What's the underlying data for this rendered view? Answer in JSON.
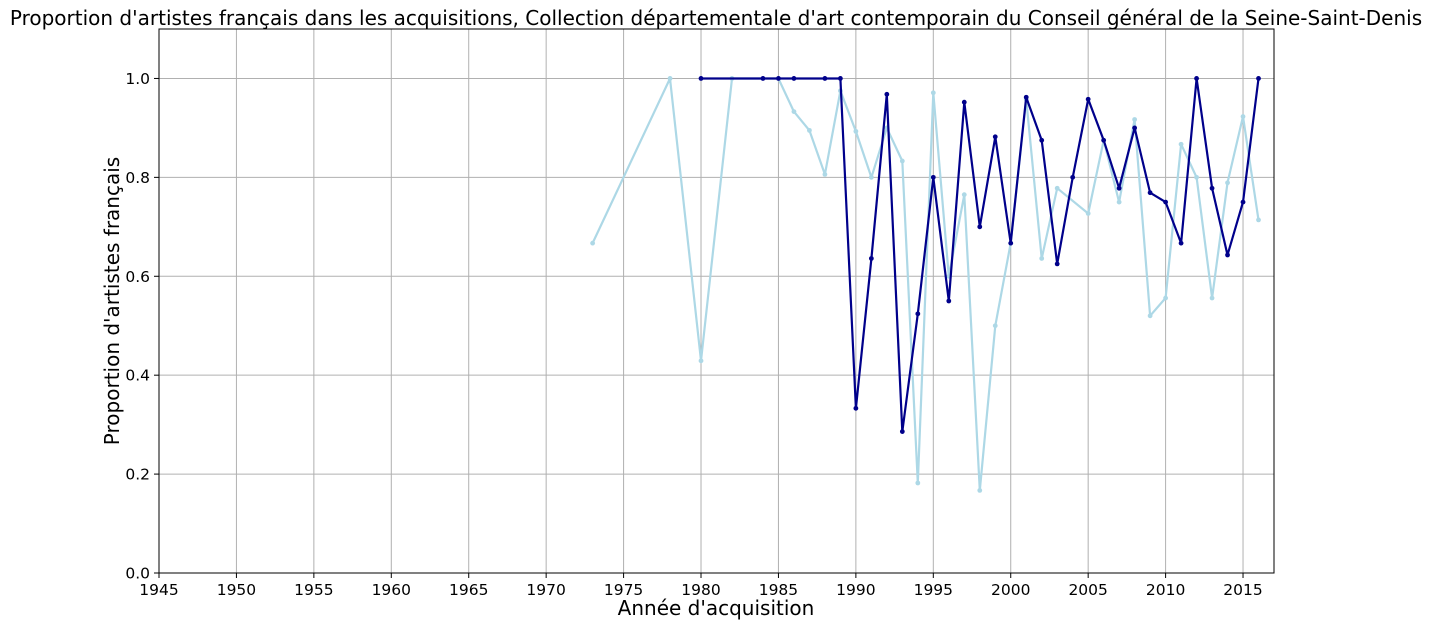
{
  "chart_data": {
    "type": "line",
    "title": "Proportion d'artistes français dans les acquisitions, Collection départementale d'art contemporain du Conseil général de la Seine-Saint-Denis",
    "xlabel": "Année d'acquisition",
    "ylabel": "Proportion d'artistes français",
    "xlim": [
      1945,
      2017
    ],
    "ylim": [
      0,
      1.1
    ],
    "xticks": [
      1945,
      1950,
      1955,
      1960,
      1965,
      1970,
      1975,
      1980,
      1985,
      1990,
      1995,
      2000,
      2005,
      2010,
      2015
    ],
    "yticks": [
      0.0,
      0.2,
      0.4,
      0.6,
      0.8,
      1.0
    ],
    "ytick_labels": [
      "0.0",
      "0.2",
      "0.4",
      "0.6",
      "0.8",
      "1.0"
    ],
    "grid": true,
    "series": [
      {
        "color": "#add8e6",
        "x": [
          1973,
          1978,
          1980,
          1982,
          1985,
          1986,
          1987,
          1988,
          1989,
          1990,
          1991,
          1992,
          1993,
          1994,
          1995,
          1996,
          1997,
          1998,
          1999,
          2000,
          2001,
          2002,
          2003,
          2005,
          2006,
          2007,
          2008,
          2009,
          2010,
          2011,
          2012,
          2013,
          2014,
          2015,
          2016
        ],
        "y": [
          0.667,
          1.0,
          0.429,
          1.0,
          1.0,
          0.933,
          0.895,
          0.806,
          0.975,
          0.893,
          0.8,
          0.9,
          0.833,
          0.182,
          0.971,
          0.6,
          0.765,
          0.167,
          0.5,
          0.667,
          0.958,
          0.636,
          0.778,
          0.727,
          0.875,
          0.75,
          0.917,
          0.52,
          0.556,
          0.867,
          0.8,
          0.556,
          0.789,
          0.923,
          0.714
        ]
      },
      {
        "color": "#00008b",
        "x": [
          1980,
          1984,
          1985,
          1986,
          1988,
          1989,
          1990,
          1991,
          1992,
          1993,
          1994,
          1995,
          1996,
          1997,
          1998,
          1999,
          2000,
          2001,
          2002,
          2003,
          2004,
          2005,
          2006,
          2007,
          2008,
          2009,
          2010,
          2011,
          2012,
          2013,
          2014,
          2015,
          2016
        ],
        "y": [
          1.0,
          1.0,
          1.0,
          1.0,
          1.0,
          1.0,
          0.333,
          0.636,
          0.968,
          0.286,
          0.524,
          0.8,
          0.55,
          0.952,
          0.7,
          0.882,
          0.667,
          0.962,
          0.875,
          0.625,
          0.8,
          0.958,
          0.875,
          0.778,
          0.9,
          0.769,
          0.75,
          0.667,
          1.0,
          0.778,
          0.643,
          0.75,
          1.0
        ]
      }
    ]
  }
}
